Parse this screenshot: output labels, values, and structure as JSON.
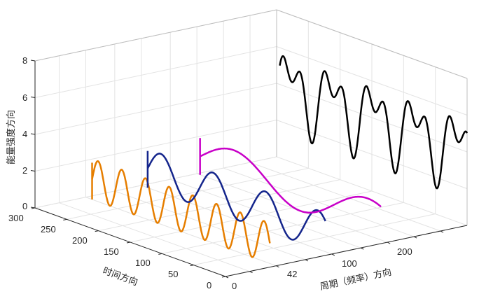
{
  "chart_data": {
    "type": "line3d",
    "title": "",
    "xlabel": "周期（频率）方向",
    "ylabel": "时间方向",
    "zlabel": "能量强度方向",
    "xticks": [
      "0",
      "42",
      "100",
      "200"
    ],
    "yticks": [
      "0",
      "50",
      "100",
      "150",
      "200",
      "250",
      "300"
    ],
    "zticks": [
      "0",
      "2",
      "4",
      "6",
      "8"
    ],
    "ylim": [
      0,
      300
    ],
    "zlim": [
      0,
      8
    ],
    "grid": true,
    "series": [
      {
        "name": "orange",
        "color": "#E67E00",
        "period": 42,
        "time_range": [
          10,
          290
        ],
        "mean": 1.1,
        "amplitude": 1.1,
        "cycles": 7.5,
        "stick": [
          0,
          2
        ]
      },
      {
        "name": "blue",
        "color": "#14258C",
        "period": 100,
        "time_range": [
          10,
          290
        ],
        "mean": 1.05,
        "amplitude": 1.05,
        "cycles": 3.4,
        "stick": [
          0,
          2
        ]
      },
      {
        "name": "magenta",
        "color": "#C800C8",
        "period": 200,
        "time_range": [
          10,
          295
        ],
        "mean": 1.0,
        "amplitude": 1.0,
        "cycles": 1.35,
        "stick": [
          0,
          2
        ]
      },
      {
        "name": "black",
        "color": "#000000",
        "period": 360,
        "time_range": [
          0,
          295
        ],
        "mean": 4.0,
        "amplitude": 1.5,
        "cycles": 4.5,
        "amplitude2": 1.1,
        "cycles2": 9
      }
    ]
  }
}
